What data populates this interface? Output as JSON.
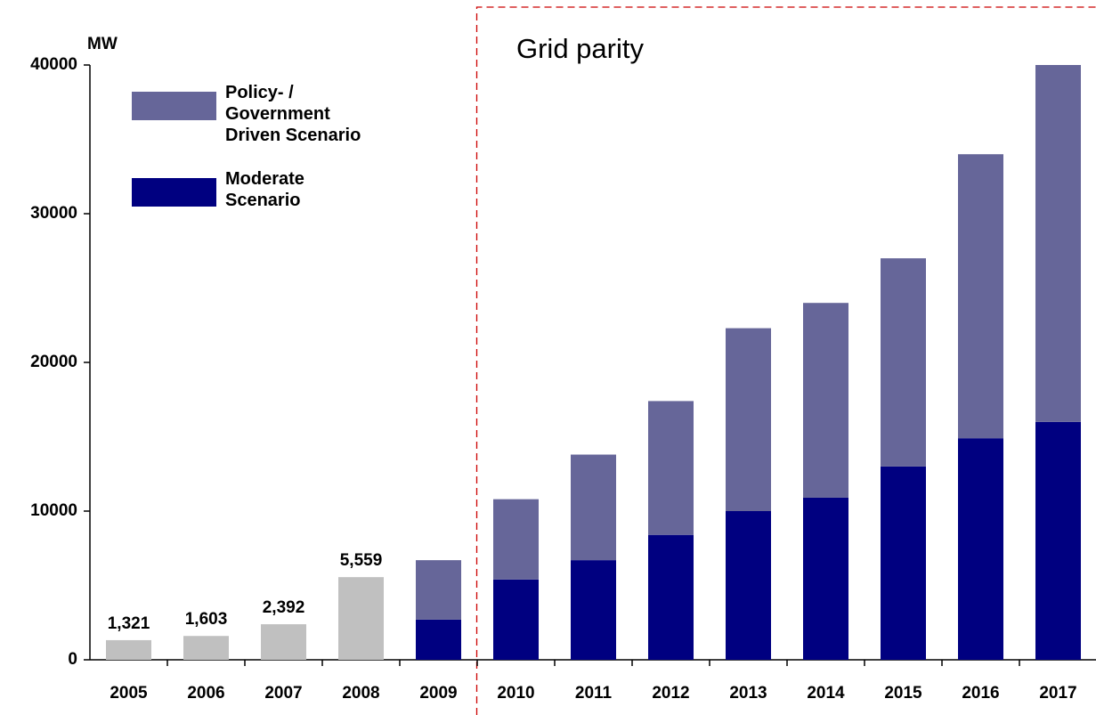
{
  "chart_data": {
    "type": "stacked-bar",
    "y_label": "MW",
    "annotation": "Grid parity",
    "categories": [
      "2005",
      "2006",
      "2007",
      "2008",
      "2009",
      "2010",
      "2011",
      "2012",
      "2013",
      "2014",
      "2015",
      "2016",
      "2017"
    ],
    "historical": {
      "color": "#c0c0c0",
      "values": [
        1321,
        1603,
        2392,
        5559,
        null,
        null,
        null,
        null,
        null,
        null,
        null,
        null,
        null
      ],
      "value_labels": [
        "1,321",
        "1,603",
        "2,392",
        "5,559",
        null,
        null,
        null,
        null,
        null,
        null,
        null,
        null,
        null
      ]
    },
    "series": [
      {
        "name": "Moderate Scenario",
        "color": "#000080",
        "values": [
          null,
          null,
          null,
          null,
          2700,
          5400,
          6700,
          8400,
          10000,
          10900,
          13000,
          14900,
          16000
        ]
      },
      {
        "name": "Policy- / Government Driven Scenario",
        "color": "#666699",
        "values": [
          null,
          null,
          null,
          null,
          4000,
          5400,
          7100,
          9000,
          12300,
          13100,
          14000,
          19100,
          24000
        ]
      }
    ],
    "ylim": [
      0,
      40000
    ],
    "yticks": [
      0,
      10000,
      20000,
      30000,
      40000
    ],
    "annotation_color": "#cc0000"
  }
}
